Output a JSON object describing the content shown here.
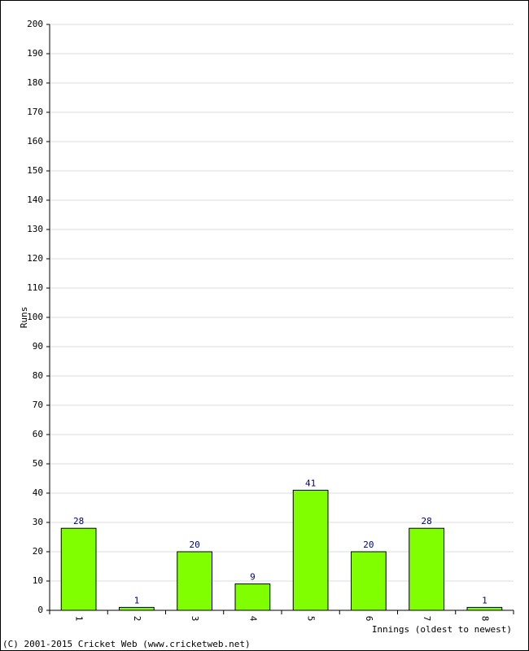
{
  "chart_data": {
    "type": "bar",
    "categories": [
      "1",
      "2",
      "3",
      "4",
      "5",
      "6",
      "7",
      "8"
    ],
    "values": [
      28,
      1,
      20,
      9,
      41,
      20,
      28,
      1
    ],
    "color": "#80ff00",
    "label_color": "#000080",
    "y_label": "Runs",
    "x_label": "Innings (oldest to newest)",
    "footer": "(C) 2001-2015 Cricket Web (www.cricketweb.net)",
    "ylim": [
      0,
      200
    ],
    "yticks": [
      0,
      10,
      20,
      30,
      40,
      50,
      60,
      70,
      80,
      90,
      100,
      110,
      120,
      130,
      140,
      150,
      160,
      170,
      180,
      190,
      200
    ],
    "grid": true
  }
}
